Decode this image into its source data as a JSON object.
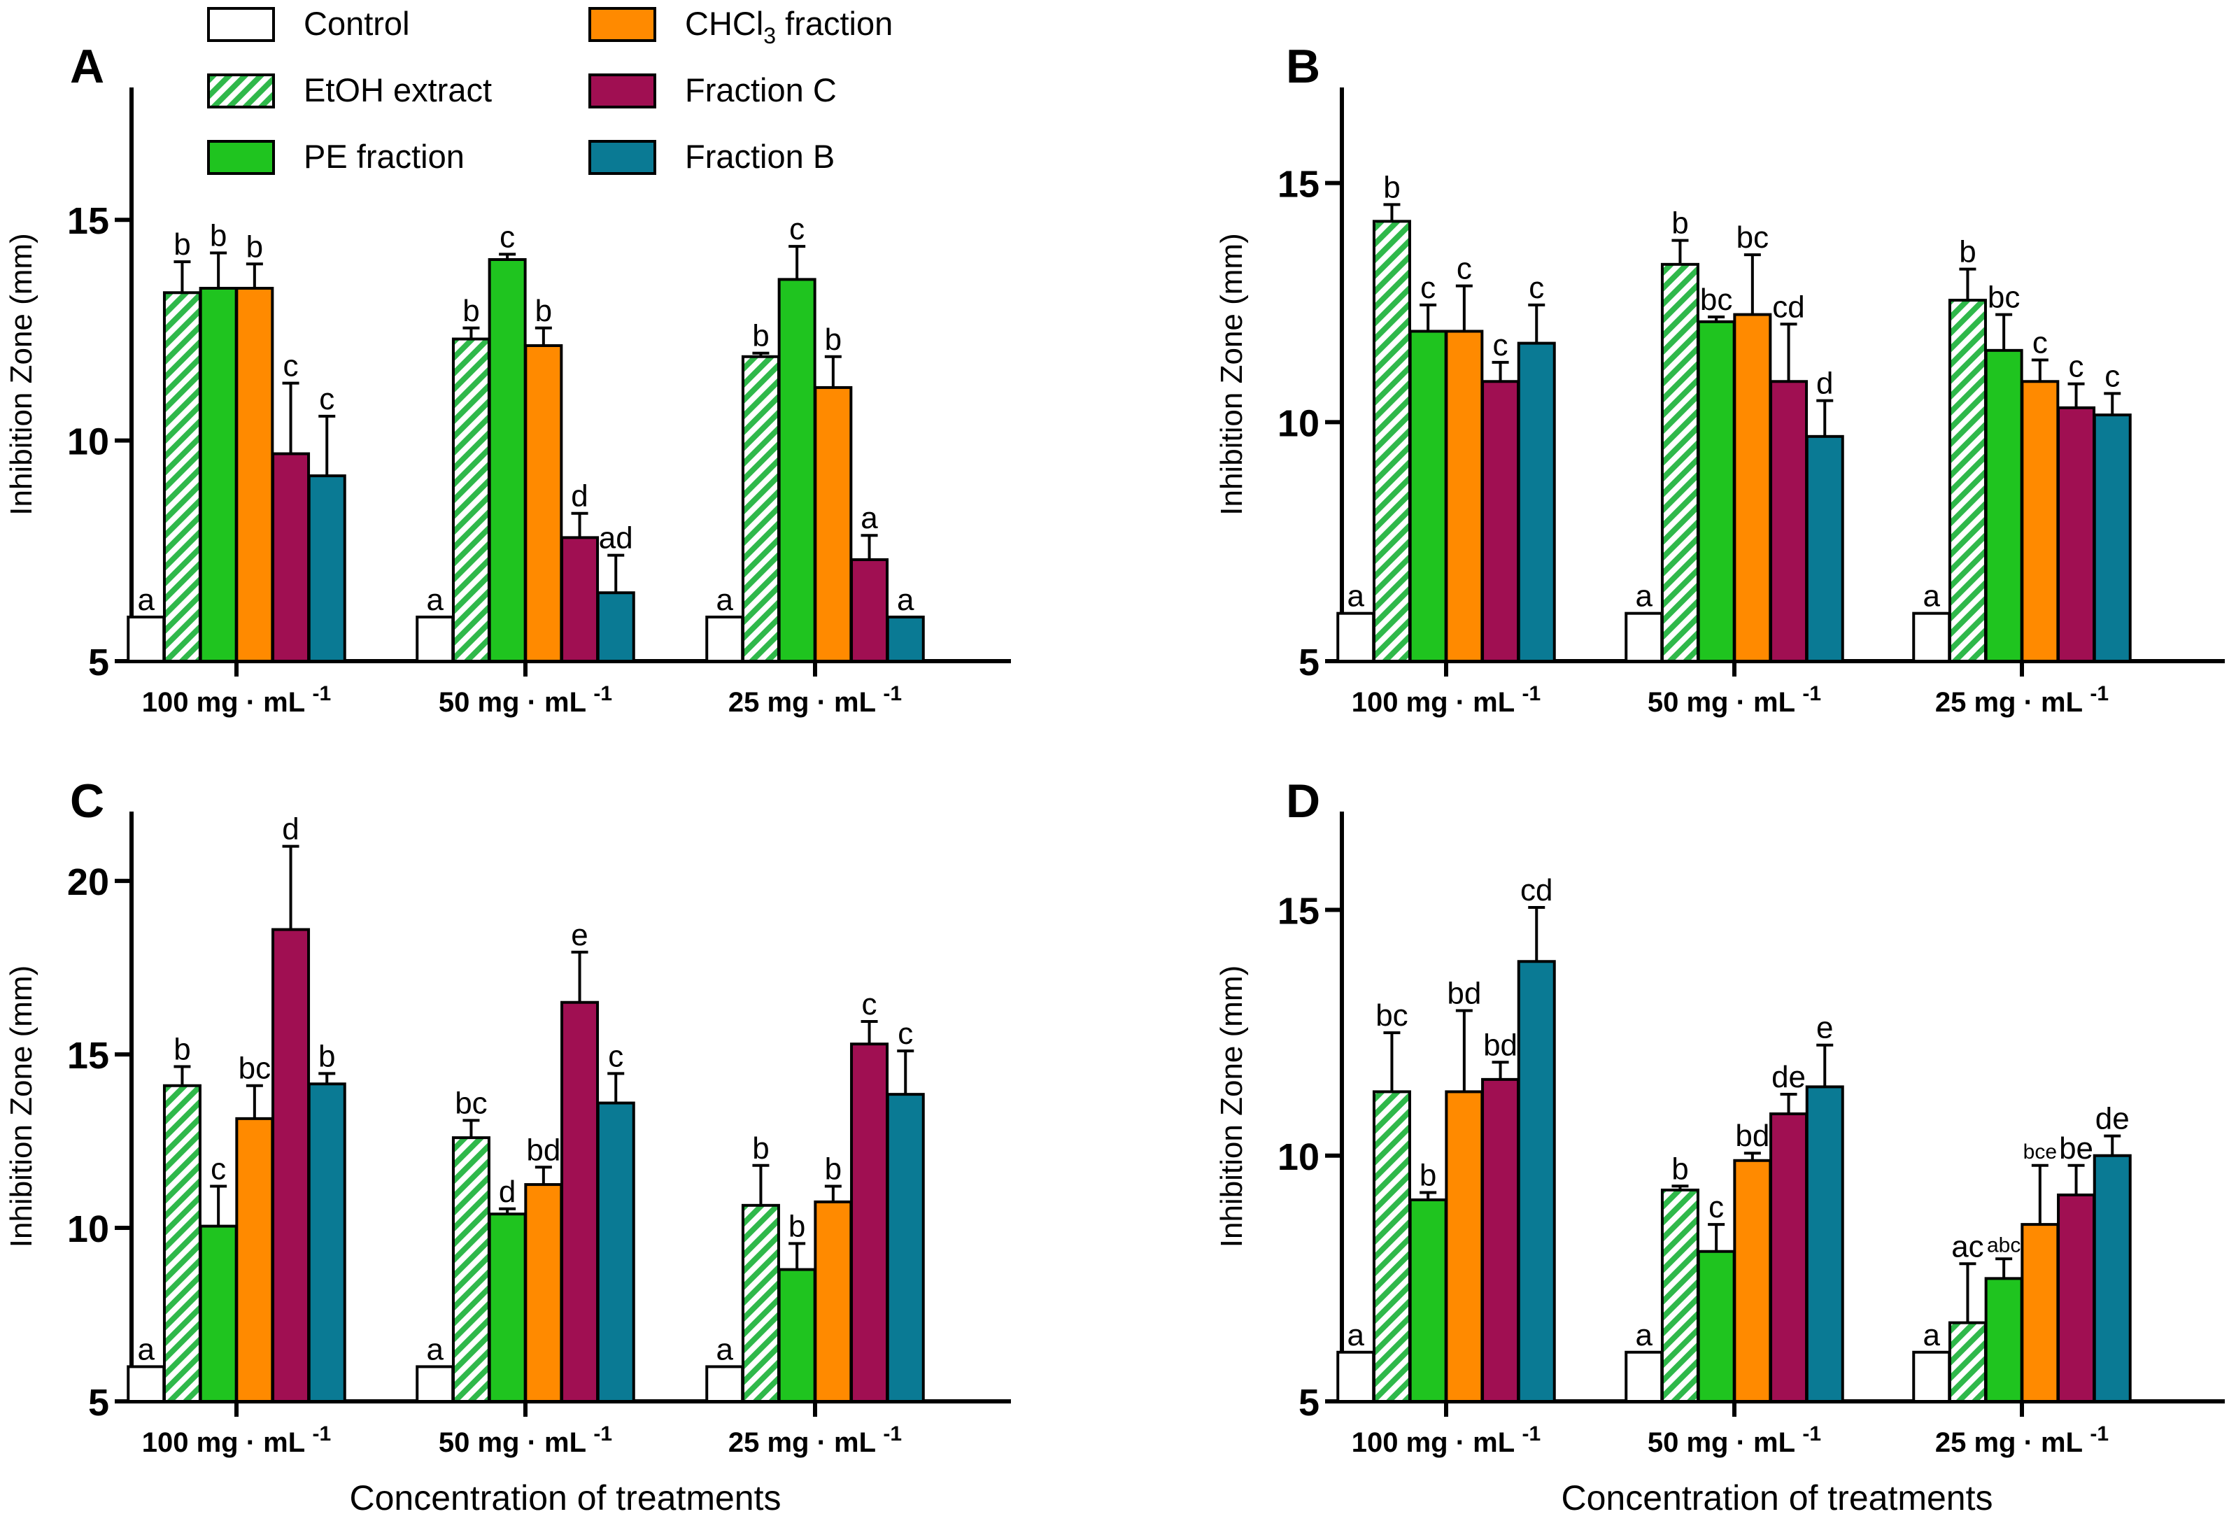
{
  "figure": {
    "legend": [
      {
        "name": "Control",
        "color": "#ffffff",
        "pattern": "none"
      },
      {
        "name": "EtOH extract",
        "color": "#2fb84a",
        "pattern": "hatch"
      },
      {
        "name": "PE fraction",
        "color": "#1fc41f",
        "pattern": "none"
      },
      {
        "name": "CHCl3 fraction",
        "label_main": "CHCl",
        "label_sub": "3",
        "label_tail": " fraction",
        "color": "#ff8a00",
        "pattern": "none"
      },
      {
        "name": "Fraction C",
        "color": "#a00f52",
        "pattern": "none"
      },
      {
        "name": "Fraction B",
        "color": "#0a7a94",
        "pattern": "none"
      }
    ],
    "x_title": "Concentration of treatments"
  },
  "chart_data": [
    {
      "panel": "A",
      "type": "bar",
      "ylabel": "Inhibition Zone (mm)",
      "ylim": [
        5,
        18
      ],
      "yticks": [
        5,
        10,
        15
      ],
      "categories": [
        "100 mg·mL-1",
        "50 mg·mL-1",
        "25 mg·mL-1"
      ],
      "series": [
        {
          "name": "Control",
          "values": [
            6.0,
            6.0,
            6.0
          ],
          "errors": [
            0,
            0,
            0
          ],
          "letters": [
            "a",
            "a",
            "a"
          ]
        },
        {
          "name": "EtOH extract",
          "values": [
            13.35,
            12.3,
            11.9
          ],
          "errors": [
            0.7,
            0.25,
            0.08
          ],
          "letters": [
            "b",
            "b",
            "b"
          ]
        },
        {
          "name": "PE fraction",
          "values": [
            13.45,
            14.1,
            13.65
          ],
          "errors": [
            0.8,
            0.12,
            0.75
          ],
          "letters": [
            "b",
            "c",
            "c"
          ]
        },
        {
          "name": "CHCl3 fraction",
          "values": [
            13.45,
            12.15,
            11.2
          ],
          "errors": [
            0.55,
            0.4,
            0.7
          ],
          "letters": [
            "b",
            "b",
            "b"
          ]
        },
        {
          "name": "Fraction C",
          "values": [
            9.7,
            7.8,
            7.3
          ],
          "errors": [
            1.6,
            0.55,
            0.55
          ],
          "letters": [
            "c",
            "d",
            "a"
          ]
        },
        {
          "name": "Fraction B",
          "values": [
            9.2,
            6.55,
            6.0
          ],
          "errors": [
            1.35,
            0.85,
            0
          ],
          "letters": [
            "c",
            "ad",
            "a"
          ]
        }
      ]
    },
    {
      "panel": "B",
      "type": "bar",
      "ylabel": "Inhibition Zone (mm)",
      "ylim": [
        5,
        17
      ],
      "yticks": [
        5,
        10,
        15
      ],
      "categories": [
        "100 mg·mL-1",
        "50 mg·mL-1",
        "25 mg·mL-1"
      ],
      "series": [
        {
          "name": "Control",
          "values": [
            6.0,
            6.0,
            6.0
          ],
          "errors": [
            0,
            0,
            0
          ],
          "letters": [
            "a",
            "a",
            "a"
          ]
        },
        {
          "name": "EtOH extract",
          "values": [
            14.2,
            13.3,
            12.55
          ],
          "errors": [
            0.35,
            0.5,
            0.65
          ],
          "letters": [
            "b",
            "b",
            "b"
          ]
        },
        {
          "name": "PE fraction",
          "values": [
            11.9,
            12.1,
            11.5
          ],
          "errors": [
            0.55,
            0.1,
            0.75
          ],
          "letters": [
            "c",
            "bc",
            "bc"
          ]
        },
        {
          "name": "CHCl3 fraction",
          "values": [
            11.9,
            12.25,
            10.85
          ],
          "errors": [
            0.95,
            1.25,
            0.45
          ],
          "letters": [
            "c",
            "bc",
            "c"
          ]
        },
        {
          "name": "Fraction C",
          "values": [
            10.85,
            10.85,
            10.3
          ],
          "errors": [
            0.4,
            1.2,
            0.5
          ],
          "letters": [
            "c",
            "cd",
            "c"
          ]
        },
        {
          "name": "Fraction B",
          "values": [
            11.65,
            9.7,
            10.15
          ],
          "errors": [
            0.8,
            0.75,
            0.45
          ],
          "letters": [
            "c",
            "d",
            "c"
          ]
        }
      ]
    },
    {
      "panel": "C",
      "type": "bar",
      "ylabel": "Inhibition Zone (mm)",
      "ylim": [
        5,
        22
      ],
      "yticks": [
        5,
        10,
        15,
        20
      ],
      "categories": [
        "100 mg·mL-1",
        "50 mg·mL-1",
        "25 mg·mL-1"
      ],
      "series": [
        {
          "name": "Control",
          "values": [
            6.0,
            6.0,
            6.0
          ],
          "errors": [
            0,
            0,
            0
          ],
          "letters": [
            "a",
            "a",
            "a"
          ]
        },
        {
          "name": "EtOH extract",
          "values": [
            14.1,
            12.6,
            10.65
          ],
          "errors": [
            0.55,
            0.5,
            1.15
          ],
          "letters": [
            "b",
            "bc",
            "b"
          ]
        },
        {
          "name": "PE fraction",
          "values": [
            10.05,
            10.4,
            8.8
          ],
          "errors": [
            1.15,
            0.15,
            0.75
          ],
          "letters": [
            "c",
            "d",
            "b"
          ]
        },
        {
          "name": "CHCl3 fraction",
          "values": [
            13.15,
            11.25,
            10.75
          ],
          "errors": [
            0.95,
            0.5,
            0.45
          ],
          "letters": [
            "bc",
            "bd",
            "b"
          ]
        },
        {
          "name": "Fraction C",
          "values": [
            18.6,
            16.5,
            15.3
          ],
          "errors": [
            2.4,
            1.45,
            0.65
          ],
          "letters": [
            "d",
            "e",
            "c"
          ]
        },
        {
          "name": "Fraction B",
          "values": [
            14.15,
            13.6,
            13.85
          ],
          "errors": [
            0.3,
            0.85,
            1.25
          ],
          "letters": [
            "b",
            "c",
            "c"
          ]
        }
      ]
    },
    {
      "panel": "D",
      "type": "bar",
      "ylabel": "Inhibition Zone (mm)",
      "ylim": [
        5,
        17
      ],
      "yticks": [
        5,
        10,
        15
      ],
      "categories": [
        "100 mg·mL-1",
        "50 mg·mL-1",
        "25 mg·mL-1"
      ],
      "series": [
        {
          "name": "Control",
          "values": [
            6.0,
            6.0,
            6.0
          ],
          "errors": [
            0,
            0,
            0
          ],
          "letters": [
            "a",
            "a",
            "a"
          ]
        },
        {
          "name": "EtOH extract",
          "values": [
            11.3,
            9.3,
            6.6
          ],
          "errors": [
            1.2,
            0.08,
            1.2
          ],
          "letters": [
            "bc",
            "b",
            "ac"
          ]
        },
        {
          "name": "PE fraction",
          "values": [
            9.1,
            8.05,
            7.5
          ],
          "errors": [
            0.15,
            0.55,
            0.4
          ],
          "letters": [
            "b",
            "c",
            "abc"
          ]
        },
        {
          "name": "CHCl3 fraction",
          "values": [
            11.3,
            9.9,
            8.6
          ],
          "errors": [
            1.65,
            0.15,
            1.2
          ],
          "letters": [
            "bd",
            "bd",
            "bce"
          ]
        },
        {
          "name": "Fraction C",
          "values": [
            11.55,
            10.85,
            9.2
          ],
          "errors": [
            0.35,
            0.4,
            0.6
          ],
          "letters": [
            "bd",
            "de",
            "be"
          ]
        },
        {
          "name": "Fraction B",
          "values": [
            13.95,
            11.4,
            10.0
          ],
          "errors": [
            1.1,
            0.85,
            0.4
          ],
          "letters": [
            "cd",
            "e",
            "de"
          ]
        }
      ]
    }
  ],
  "category_parts": [
    {
      "number": "100",
      "unit": "mg",
      "dot": "·",
      "tail": "mL",
      "exp": "-1"
    },
    {
      "number": "50",
      "unit": "mg",
      "dot": "·",
      "tail": "mL",
      "exp": "-1"
    },
    {
      "number": "25",
      "unit": "mg",
      "dot": "·",
      "tail": "mL",
      "exp": "-1"
    }
  ]
}
